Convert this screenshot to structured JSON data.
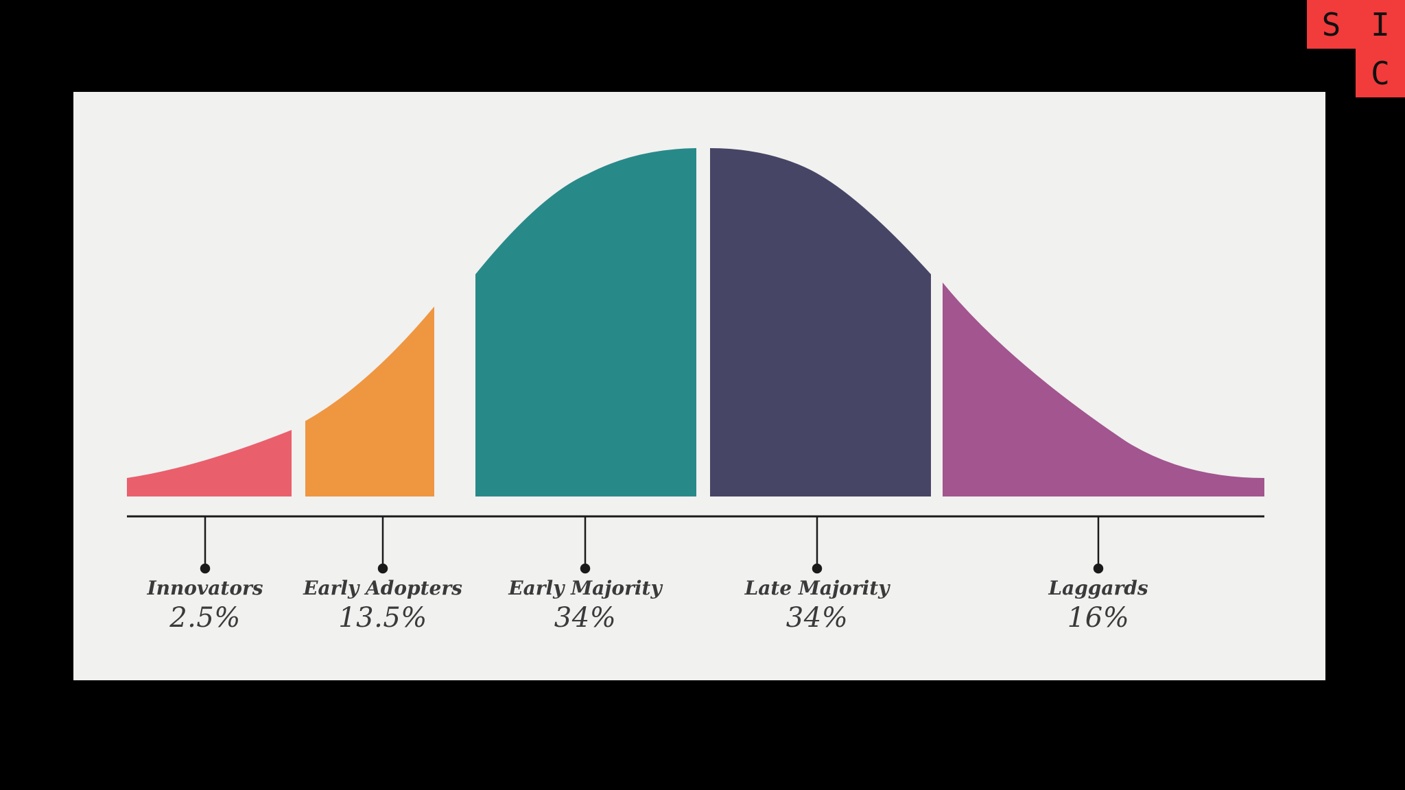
{
  "logo": {
    "letters": [
      "S",
      "I",
      "C"
    ],
    "color": "#f23b3b"
  },
  "diagram": {
    "segments": [
      {
        "name": "Innovators",
        "percent": "2.5%",
        "color": "#ea5f6c"
      },
      {
        "name": "Early Adopters",
        "percent": "13.5%",
        "color": "#ef9641"
      },
      {
        "name": "Early Majority",
        "percent": "34%",
        "color": "#278a89"
      },
      {
        "name": "Late Majority",
        "percent": "34%",
        "color": "#474565"
      },
      {
        "name": "Laggards",
        "percent": "16%",
        "color": "#a2558e"
      }
    ]
  }
}
